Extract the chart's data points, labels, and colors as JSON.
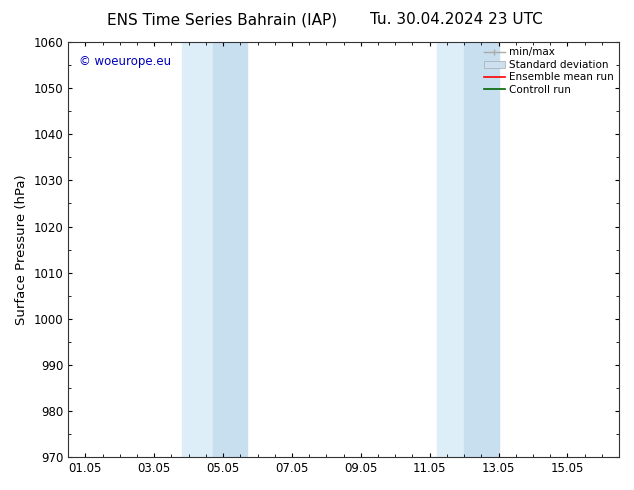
{
  "title_left": "ENS Time Series Bahrain (IAP)",
  "title_right": "Tu. 30.04.2024 23 UTC",
  "ylabel": "Surface Pressure (hPa)",
  "xlabel_ticks": [
    "01.05",
    "03.05",
    "05.05",
    "07.05",
    "09.05",
    "11.05",
    "13.05",
    "15.05"
  ],
  "xlabel_tick_positions": [
    1.0,
    3.0,
    5.0,
    7.0,
    9.0,
    11.0,
    13.0,
    15.0
  ],
  "ylim": [
    970,
    1060
  ],
  "xlim": [
    0.5,
    16.5
  ],
  "yticks": [
    970,
    980,
    990,
    1000,
    1010,
    1020,
    1030,
    1040,
    1050,
    1060
  ],
  "shaded_groups": [
    {
      "bands": [
        {
          "x_start": 3.8,
          "x_end": 4.7,
          "color": "#ddeef8"
        },
        {
          "x_start": 4.7,
          "x_end": 5.7,
          "color": "#c8dff0"
        }
      ]
    },
    {
      "bands": [
        {
          "x_start": 11.2,
          "x_end": 12.0,
          "color": "#ddeef8"
        },
        {
          "x_start": 12.0,
          "x_end": 13.0,
          "color": "#c8dff0"
        }
      ]
    }
  ],
  "watermark_text": "© woeurope.eu",
  "watermark_color": "#0000bb",
  "background_color": "#ffffff",
  "plot_bg_color": "#ffffff",
  "legend_entries": [
    {
      "label": "min/max",
      "color": "#aaaaaa",
      "style": "line_with_cap"
    },
    {
      "label": "Standard deviation",
      "color": "#cce0f0",
      "style": "filled_bar"
    },
    {
      "label": "Ensemble mean run",
      "color": "#ff0000",
      "style": "line"
    },
    {
      "label": "Controll run",
      "color": "#006600",
      "style": "line"
    }
  ],
  "title_fontsize": 11,
  "tick_fontsize": 8.5,
  "ylabel_fontsize": 9.5,
  "legend_fontsize": 7.5
}
